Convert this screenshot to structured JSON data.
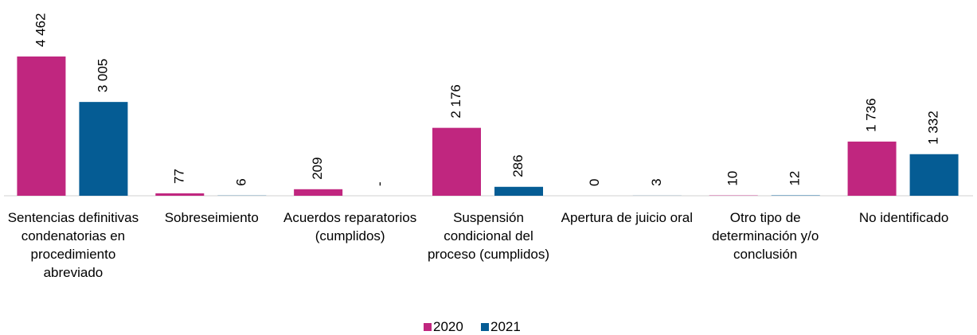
{
  "chart_data": {
    "type": "bar",
    "categories": [
      "Sentencias definitivas condenatorias en procedimiento abreviado",
      "Sobreseimiento",
      "Acuerdos reparatorios (cumplidos)",
      "Suspensión condicional del proceso (cumplidos)",
      "Apertura de juicio oral",
      "Otro tipo de determinación y/o conclusión",
      "No identificado"
    ],
    "series": [
      {
        "name": "2020",
        "color": "#c0267f",
        "values": [
          4462,
          77,
          209,
          2176,
          0,
          10,
          1736
        ],
        "value_labels": [
          "4 462",
          "77",
          "209",
          "2 176",
          "0",
          "10",
          "1 736"
        ]
      },
      {
        "name": "2021",
        "color": "#055c94",
        "values": [
          3005,
          6,
          0,
          286,
          3,
          12,
          1332
        ],
        "value_labels": [
          "3 005",
          "6",
          "-",
          "286",
          "3",
          "12",
          "1 332"
        ]
      }
    ],
    "legend": "bottom"
  }
}
